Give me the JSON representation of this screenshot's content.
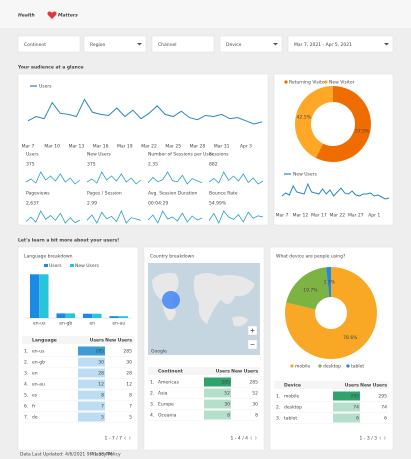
{
  "header": {
    "brand_left": "Health",
    "brand_right": "Matters"
  },
  "filters": [
    "Continent",
    "Region",
    "Channel",
    "Device",
    "Mar 7, 2021 - Apr 5, 2021"
  ],
  "sections": [
    "Your audience at a glance",
    "Let's learn a bit more about your users!"
  ],
  "metrics": [
    {
      "label": "Users",
      "value": "375",
      "trend": [
        12,
        15,
        11,
        22,
        14,
        18,
        13,
        20,
        12,
        16,
        10,
        14
      ]
    },
    {
      "label": "New Users",
      "value": "375",
      "trend": [
        12,
        15,
        11,
        22,
        14,
        18,
        13,
        20,
        12,
        16,
        10,
        14
      ]
    },
    {
      "label": "Number of Sessions per User",
      "value": "2.35",
      "trend": [
        2.1,
        2.6,
        2.2,
        2.4,
        3.1,
        2.3,
        2.2,
        2.8,
        2.0,
        2.5,
        2.3,
        2.1
      ]
    },
    {
      "label": "Sessions",
      "value": "882",
      "trend": [
        28,
        35,
        26,
        48,
        31,
        40,
        30,
        44,
        27,
        36,
        24,
        30
      ]
    },
    {
      "label": "Pageviews",
      "value": "2,637",
      "trend": [
        80,
        110,
        75,
        150,
        95,
        120,
        88,
        135,
        70,
        105,
        72,
        90
      ]
    },
    {
      "label": "Pages / Session",
      "value": "2.99",
      "trend": [
        2.8,
        3.2,
        2.6,
        3.4,
        2.9,
        3.1,
        2.7,
        3.5,
        2.6,
        3.0,
        2.9,
        2.8
      ]
    },
    {
      "label": "Avg. Session Duration",
      "value": "00:04:29",
      "trend": [
        250,
        300,
        220,
        340,
        260,
        280,
        240,
        320,
        230,
        290,
        250,
        270
      ]
    },
    {
      "label": "Bounce Rate",
      "value": "54.99%",
      "trend": [
        52,
        58,
        50,
        60,
        55,
        53,
        57,
        51,
        59,
        54,
        56,
        55
      ]
    }
  ],
  "chart_data": [
    {
      "type": "line",
      "categories": [
        "Mar 7",
        null,
        null,
        "Mar 10",
        null,
        null,
        "Mar 13",
        null,
        null,
        "Mar 16",
        null,
        null,
        "Mar 19",
        null,
        null,
        "Mar 22",
        null,
        null,
        "Mar 25",
        null,
        null,
        "Mar 28",
        null,
        null,
        "Mar 31",
        null,
        null,
        "Apr 3",
        null,
        null
      ],
      "series": [
        {
          "name": "Users",
          "color": "#2b86c5",
          "values": [
            18,
            22,
            20,
            35,
            25,
            24,
            22,
            38,
            26,
            24,
            23,
            30,
            22,
            28,
            20,
            25,
            32,
            24,
            22,
            27,
            21,
            19,
            23,
            22,
            24,
            20,
            21,
            18,
            15,
            17
          ]
        }
      ],
      "ylim": [
        0,
        45
      ]
    },
    {
      "type": "donut",
      "categories": [
        "Returning Visitor",
        "New Visitor"
      ],
      "values": [
        57.5,
        42.5
      ],
      "value_labels": [
        "57.5%",
        "42.5%"
      ],
      "colors": [
        "#ef6c00",
        "#ffa726"
      ]
    },
    {
      "type": "line",
      "categories": [
        "Mar 7",
        null,
        null,
        null,
        null,
        "Mar 12",
        null,
        null,
        null,
        null,
        "Mar 17",
        null,
        null,
        null,
        null,
        "Mar 22",
        null,
        null,
        null,
        null,
        "Mar 27",
        null,
        null,
        null,
        null,
        "Apr 1",
        null,
        null,
        null,
        null
      ],
      "series": [
        {
          "name": "New Users",
          "color": "#2b86c5",
          "values": [
            12,
            15,
            13,
            22,
            16,
            15,
            14,
            24,
            16,
            15,
            14,
            19,
            14,
            18,
            12,
            16,
            20,
            15,
            14,
            17,
            13,
            12,
            14,
            14,
            15,
            12,
            13,
            11,
            9,
            10
          ]
        }
      ],
      "ylim": [
        0,
        28
      ]
    },
    {
      "type": "bar",
      "title": "Language breakdown",
      "categories": [
        "en-us",
        "en-gb",
        "en",
        "en-au"
      ],
      "series": [
        {
          "name": "Users",
          "color": "#1e88e5",
          "values": [
            285,
            30,
            28,
            12
          ]
        },
        {
          "name": "New Users",
          "color": "#26c6da",
          "values": [
            285,
            30,
            28,
            12
          ]
        }
      ],
      "ylim": [
        0,
        300
      ]
    },
    {
      "type": "donut",
      "title": "What device are people using?",
      "categories": [
        "mobile",
        "desktop",
        "tablet"
      ],
      "values": [
        78.6,
        19.7,
        1.7
      ],
      "value_labels": [
        "78.6%",
        "19.7%",
        "1.7%"
      ],
      "colors": [
        "#f9a825",
        "#7cb342",
        "#1e88e5"
      ]
    }
  ],
  "language": {
    "columns": [
      "Language",
      "Users",
      "New Users"
    ],
    "rows": [
      [
        "1.",
        "en-us",
        "285",
        "285"
      ],
      [
        "2.",
        "en-gb",
        "30",
        "30"
      ],
      [
        "3.",
        "en",
        "28",
        "28"
      ],
      [
        "4.",
        "en-au",
        "12",
        "12"
      ],
      [
        "5.",
        "es",
        "8",
        "8"
      ],
      [
        "6.",
        "fr",
        "7",
        "7"
      ],
      [
        "7.",
        "de",
        "5",
        "5"
      ]
    ],
    "pager": "1 - 7 / 7"
  },
  "country": {
    "title": "Country breakdown",
    "map_attribution": "Google",
    "columns": [
      "Continent",
      "Users",
      "New Users"
    ],
    "rows": [
      [
        "1.",
        "Americas",
        "285",
        "285"
      ],
      [
        "2.",
        "Asia",
        "52",
        "52"
      ],
      [
        "3.",
        "Europe",
        "30",
        "30"
      ],
      [
        "4.",
        "Oceania",
        "8",
        "8"
      ]
    ],
    "pager": "1 - 4 / 4"
  },
  "device": {
    "columns": [
      "Device",
      "Users",
      "New Users"
    ],
    "rows": [
      [
        "1.",
        "mobile",
        "295",
        "295"
      ],
      [
        "2.",
        "desktop",
        "74",
        "74"
      ],
      [
        "3.",
        "tablet",
        "6",
        "6"
      ]
    ],
    "pager": "1 - 3 / 3"
  },
  "footer": {
    "updated": "Data Last Updated: 4/6/2021 9:41:38 PM",
    "privacy": "Privacy Policy"
  }
}
